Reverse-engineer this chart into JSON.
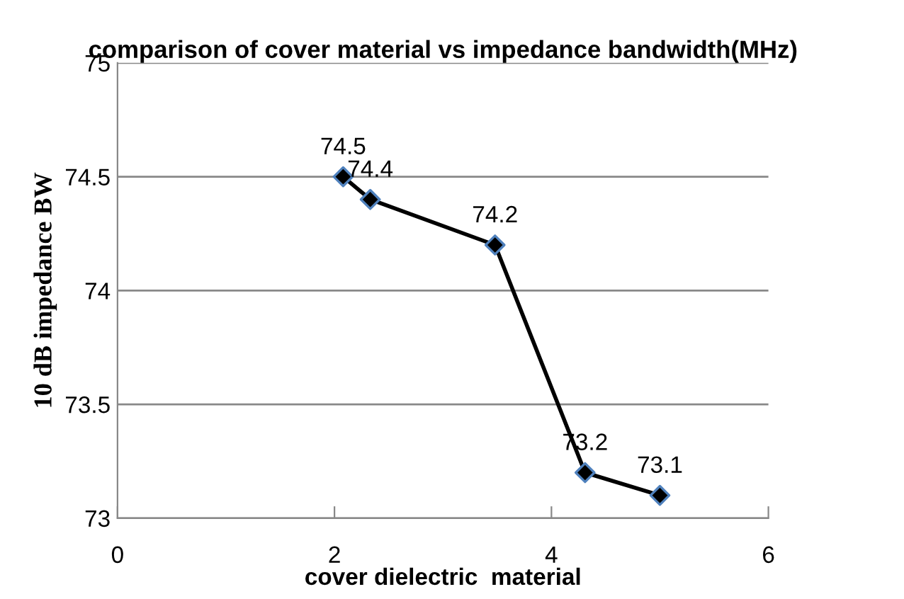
{
  "chart_data": {
    "type": "line",
    "title": "comparison of cover material vs impedance bandwidth(MHz)",
    "xlabel": "cover dielectric  material",
    "ylabel": "10 dB impedance BW",
    "x": [
      2.08,
      2.33,
      3.48,
      4.31,
      5.0
    ],
    "series": [
      {
        "color": "#000000",
        "values": [
          74.5,
          74.4,
          74.2,
          73.2,
          73.1
        ]
      }
    ],
    "xlim": [
      0,
      6
    ],
    "xticks": [
      0,
      2,
      4,
      6
    ],
    "ylim": [
      73,
      75
    ],
    "yticks": [
      73,
      73.5,
      74,
      74.5,
      75
    ],
    "grid": "y",
    "marker": "diamond",
    "line_style": "solid",
    "data_labels": true,
    "legend": false
  }
}
